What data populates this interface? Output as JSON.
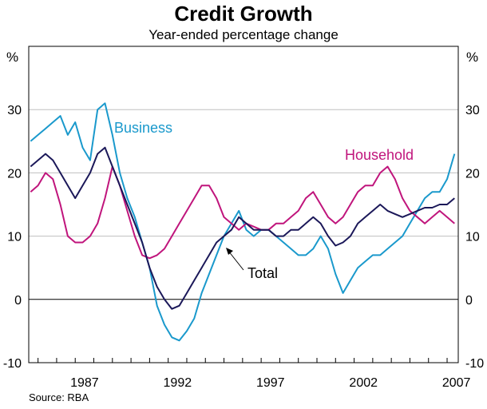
{
  "chart_data": {
    "type": "line",
    "title": "Credit Growth",
    "subtitle": "Year-ended percentage change",
    "ylabel_left": "%",
    "ylabel_right": "%",
    "ylim": [
      -10,
      40
    ],
    "yticks": [
      -10,
      0,
      10,
      20,
      30
    ],
    "xlim": [
      1984.5,
      2007.6
    ],
    "xticks": [
      1987,
      1992,
      1997,
      2002,
      2007
    ],
    "source": "Source: RBA",
    "series": [
      {
        "name": "Business",
        "color": "#1a99cc",
        "x": [
          1984.6,
          1985.0,
          1985.4,
          1985.8,
          1986.2,
          1986.6,
          1987.0,
          1987.4,
          1987.8,
          1988.2,
          1988.6,
          1989.0,
          1989.4,
          1989.8,
          1990.2,
          1990.6,
          1991.0,
          1991.4,
          1991.8,
          1992.2,
          1992.6,
          1993.0,
          1993.4,
          1993.8,
          1994.2,
          1994.6,
          1995.0,
          1995.4,
          1995.8,
          1996.2,
          1996.6,
          1997.0,
          1997.4,
          1997.8,
          1998.2,
          1998.6,
          1999.0,
          1999.4,
          1999.8,
          2000.2,
          2000.6,
          2001.0,
          2001.4,
          2001.8,
          2002.2,
          2002.6,
          2003.0,
          2003.4,
          2003.8,
          2004.2,
          2004.6,
          2005.0,
          2005.4,
          2005.8,
          2006.2,
          2006.6,
          2007.0,
          2007.4
        ],
        "y": [
          25,
          26,
          27,
          28,
          29,
          26,
          28,
          24,
          22,
          30,
          31,
          26,
          20,
          16,
          13,
          9,
          5,
          -1,
          -4,
          -6,
          -6.5,
          -5,
          -3,
          1,
          4,
          7,
          10,
          12,
          14,
          11,
          10,
          11,
          11,
          10,
          9,
          8,
          7,
          7,
          8,
          10,
          8,
          4,
          1,
          3,
          5,
          6,
          7,
          7,
          8,
          9,
          10,
          12,
          14,
          16,
          17,
          17,
          19,
          23
        ]
      },
      {
        "name": "Household",
        "color": "#c0157c",
        "x": [
          1984.6,
          1985.0,
          1985.4,
          1985.8,
          1986.2,
          1986.6,
          1987.0,
          1987.4,
          1987.8,
          1988.2,
          1988.6,
          1989.0,
          1989.4,
          1989.8,
          1990.2,
          1990.6,
          1991.0,
          1991.4,
          1991.8,
          1992.2,
          1992.6,
          1993.0,
          1993.4,
          1993.8,
          1994.2,
          1994.6,
          1995.0,
          1995.4,
          1995.8,
          1996.2,
          1996.6,
          1997.0,
          1997.4,
          1997.8,
          1998.2,
          1998.6,
          1999.0,
          1999.4,
          1999.8,
          2000.2,
          2000.6,
          2001.0,
          2001.4,
          2001.8,
          2002.2,
          2002.6,
          2003.0,
          2003.4,
          2003.8,
          2004.2,
          2004.6,
          2005.0,
          2005.4,
          2005.8,
          2006.2,
          2006.6,
          2007.0,
          2007.4
        ],
        "y": [
          17,
          18,
          20,
          19,
          15,
          10,
          9,
          9,
          10,
          12,
          16,
          21,
          18,
          14,
          10,
          7,
          6.5,
          7,
          8,
          10,
          12,
          14,
          16,
          18,
          18,
          16,
          13,
          12,
          11,
          12,
          11.5,
          11,
          11,
          12,
          12,
          13,
          14,
          16,
          17,
          15,
          13,
          12,
          13,
          15,
          17,
          18,
          18,
          20,
          21,
          19,
          16,
          14,
          13,
          12,
          13,
          14,
          13,
          12
        ]
      },
      {
        "name": "Total",
        "color": "#1b1859",
        "x": [
          1984.6,
          1985.0,
          1985.4,
          1985.8,
          1986.2,
          1986.6,
          1987.0,
          1987.4,
          1987.8,
          1988.2,
          1988.6,
          1989.0,
          1989.4,
          1989.8,
          1990.2,
          1990.6,
          1991.0,
          1991.4,
          1991.8,
          1992.2,
          1992.6,
          1993.0,
          1993.4,
          1993.8,
          1994.2,
          1994.6,
          1995.0,
          1995.4,
          1995.8,
          1996.2,
          1996.6,
          1997.0,
          1997.4,
          1997.8,
          1998.2,
          1998.6,
          1999.0,
          1999.4,
          1999.8,
          2000.2,
          2000.6,
          2001.0,
          2001.4,
          2001.8,
          2002.2,
          2002.6,
          2003.0,
          2003.4,
          2003.8,
          2004.2,
          2004.6,
          2005.0,
          2005.4,
          2005.8,
          2006.2,
          2006.6,
          2007.0,
          2007.4
        ],
        "y": [
          21,
          22,
          23,
          22,
          20,
          18,
          16,
          18,
          20,
          23,
          24,
          21,
          18,
          15,
          12,
          9,
          5,
          2,
          0,
          -1.5,
          -1,
          1,
          3,
          5,
          7,
          9,
          10,
          11,
          13,
          12,
          11,
          11,
          11,
          10,
          10,
          11,
          11,
          12,
          13,
          12,
          10,
          8.5,
          9,
          10,
          12,
          13,
          14,
          15,
          14,
          13.5,
          13,
          13.5,
          14,
          14.5,
          14.5,
          15,
          15,
          16
        ]
      }
    ],
    "annotations": [
      {
        "text": "Business",
        "series": "Business"
      },
      {
        "text": "Household",
        "series": "Household"
      },
      {
        "text": "Total",
        "series": "Total",
        "arrow": true
      }
    ]
  }
}
